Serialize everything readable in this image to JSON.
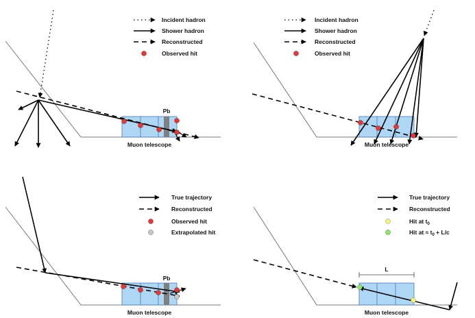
{
  "panels": [
    {
      "id": "top-left",
      "legend": [
        "Incident hadron",
        "Shower hadron",
        "Reconstructed",
        "Observed hit"
      ],
      "detector_label": "Muon telescope",
      "absorber_label": "Pb"
    },
    {
      "id": "top-right",
      "legend": [
        "Incident hadron",
        "Shower hadron",
        "Reconstructed",
        "Observed hit"
      ],
      "detector_label": "Muon telescope"
    },
    {
      "id": "bottom-left",
      "legend": [
        "True trajectory",
        "Reconstructed",
        "Observed hit",
        "Extrapolated hit"
      ],
      "detector_label": "Muon telescope",
      "absorber_label": "Pb"
    },
    {
      "id": "bottom-right",
      "legend": [
        "True trajectory",
        "Reconstructed"
      ],
      "legend_hit_t0": {
        "prefix": "Hit at t",
        "sub": "0"
      },
      "legend_hit_t0_lc": {
        "prefix": "Hit at ≈ t",
        "sub": "0",
        "suffix": " + L/c"
      },
      "detector_label": "Muon telescope",
      "length_label": "L"
    }
  ],
  "colors": {
    "detector_fill": "#aed6f5",
    "detector_stroke": "#4a78b0",
    "absorber": "#808080",
    "observed_hit": "#e23a3a",
    "extrapolated_hit": "#c8c8c8",
    "hit_t0": "#f3f38a",
    "hit_t0_lc": "#8ee66a"
  }
}
